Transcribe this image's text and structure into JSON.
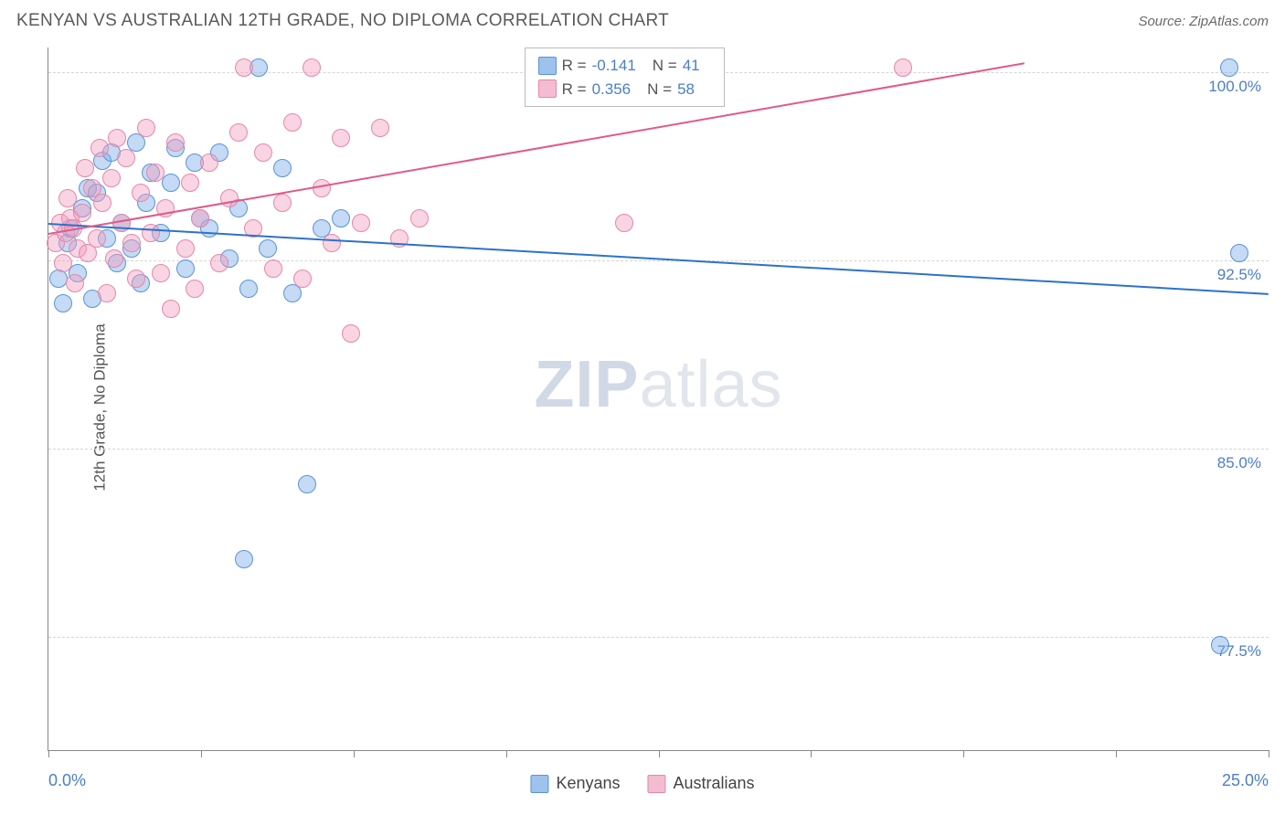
{
  "title": "KENYAN VS AUSTRALIAN 12TH GRADE, NO DIPLOMA CORRELATION CHART",
  "source": "Source: ZipAtlas.com",
  "ylabel": "12th Grade, No Diploma",
  "watermark_a": "ZIP",
  "watermark_b": "atlas",
  "chart": {
    "type": "scatter",
    "background_color": "#ffffff",
    "grid_color": "#d5d5d5",
    "xlim": [
      0,
      25
    ],
    "ylim": [
      73,
      101
    ],
    "x_axis": {
      "ticks": [
        0,
        3.125,
        6.25,
        9.375,
        12.5,
        15.625,
        18.75,
        21.875,
        25
      ],
      "label_left": "0.0%",
      "label_right": "25.0%",
      "label_color": "#4a7ec9"
    },
    "y_axis": {
      "gridlines": [
        77.5,
        85.0,
        92.5,
        100.0
      ],
      "labels": [
        "77.5%",
        "85.0%",
        "92.5%",
        "100.0%"
      ],
      "label_color": "#4a7ec9"
    },
    "marker_radius": 10,
    "marker_border_width": 1.5,
    "series": [
      {
        "name": "Kenyans",
        "color_fill": "rgba(124,172,232,0.45)",
        "color_stroke": "#5a94d6",
        "swatch": "#9dc2ec",
        "R": "-0.141",
        "N": "41",
        "trend": {
          "x1": 0,
          "y1": 94.0,
          "x2": 25,
          "y2": 91.2,
          "color": "#2d72c9",
          "width": 2
        },
        "points": [
          [
            0.2,
            91.8
          ],
          [
            0.3,
            90.8
          ],
          [
            0.4,
            93.2
          ],
          [
            0.45,
            93.8
          ],
          [
            0.6,
            92.0
          ],
          [
            0.7,
            94.6
          ],
          [
            0.8,
            95.4
          ],
          [
            0.9,
            91.0
          ],
          [
            1.0,
            95.2
          ],
          [
            1.1,
            96.5
          ],
          [
            1.2,
            93.4
          ],
          [
            1.3,
            96.8
          ],
          [
            1.4,
            92.4
          ],
          [
            1.5,
            94.0
          ],
          [
            1.7,
            93.0
          ],
          [
            1.8,
            97.2
          ],
          [
            1.9,
            91.6
          ],
          [
            2.0,
            94.8
          ],
          [
            2.1,
            96.0
          ],
          [
            2.3,
            93.6
          ],
          [
            2.5,
            95.6
          ],
          [
            2.6,
            97.0
          ],
          [
            2.8,
            92.2
          ],
          [
            3.0,
            96.4
          ],
          [
            3.1,
            94.2
          ],
          [
            3.3,
            93.8
          ],
          [
            3.5,
            96.8
          ],
          [
            3.7,
            92.6
          ],
          [
            3.9,
            94.6
          ],
          [
            4.1,
            91.4
          ],
          [
            4.3,
            100.2
          ],
          [
            4.5,
            93.0
          ],
          [
            4.8,
            96.2
          ],
          [
            5.0,
            91.2
          ],
          [
            5.3,
            83.6
          ],
          [
            5.6,
            93.8
          ],
          [
            6.0,
            94.2
          ],
          [
            4.0,
            80.6
          ],
          [
            24.2,
            100.2
          ],
          [
            24.0,
            77.2
          ],
          [
            24.4,
            92.8
          ]
        ]
      },
      {
        "name": "Australians",
        "color_fill": "rgba(242,160,190,0.45)",
        "color_stroke": "#e687aa",
        "swatch": "#f4bcd0",
        "R": "0.356",
        "N": "58",
        "trend": {
          "x1": 0,
          "y1": 93.6,
          "x2": 20,
          "y2": 100.4,
          "color": "#e05a8a",
          "width": 2
        },
        "points": [
          [
            0.15,
            93.2
          ],
          [
            0.25,
            94.0
          ],
          [
            0.3,
            92.4
          ],
          [
            0.35,
            93.6
          ],
          [
            0.4,
            95.0
          ],
          [
            0.45,
            94.2
          ],
          [
            0.5,
            93.8
          ],
          [
            0.55,
            91.6
          ],
          [
            0.6,
            93.0
          ],
          [
            0.7,
            94.4
          ],
          [
            0.75,
            96.2
          ],
          [
            0.8,
            92.8
          ],
          [
            0.9,
            95.4
          ],
          [
            1.0,
            93.4
          ],
          [
            1.05,
            97.0
          ],
          [
            1.1,
            94.8
          ],
          [
            1.2,
            91.2
          ],
          [
            1.3,
            95.8
          ],
          [
            1.35,
            92.6
          ],
          [
            1.4,
            97.4
          ],
          [
            1.5,
            94.0
          ],
          [
            1.6,
            96.6
          ],
          [
            1.7,
            93.2
          ],
          [
            1.8,
            91.8
          ],
          [
            1.9,
            95.2
          ],
          [
            2.0,
            97.8
          ],
          [
            2.1,
            93.6
          ],
          [
            2.2,
            96.0
          ],
          [
            2.3,
            92.0
          ],
          [
            2.4,
            94.6
          ],
          [
            2.5,
            90.6
          ],
          [
            2.6,
            97.2
          ],
          [
            2.8,
            93.0
          ],
          [
            2.9,
            95.6
          ],
          [
            3.0,
            91.4
          ],
          [
            3.1,
            94.2
          ],
          [
            3.3,
            96.4
          ],
          [
            3.5,
            92.4
          ],
          [
            3.7,
            95.0
          ],
          [
            3.9,
            97.6
          ],
          [
            4.0,
            100.2
          ],
          [
            4.2,
            93.8
          ],
          [
            4.4,
            96.8
          ],
          [
            4.6,
            92.2
          ],
          [
            4.8,
            94.8
          ],
          [
            5.0,
            98.0
          ],
          [
            5.2,
            91.8
          ],
          [
            5.4,
            100.2
          ],
          [
            5.6,
            95.4
          ],
          [
            5.8,
            93.2
          ],
          [
            6.0,
            97.4
          ],
          [
            6.2,
            89.6
          ],
          [
            6.4,
            94.0
          ],
          [
            6.8,
            97.8
          ],
          [
            7.2,
            93.4
          ],
          [
            7.6,
            94.2
          ],
          [
            11.8,
            94.0
          ],
          [
            17.5,
            100.2
          ]
        ]
      }
    ]
  },
  "bottom_legend": [
    {
      "label": "Kenyans",
      "swatch": "#9dc2ec",
      "stroke": "#5a94d6"
    },
    {
      "label": "Australians",
      "swatch": "#f4bcd0",
      "stroke": "#e687aa"
    }
  ]
}
